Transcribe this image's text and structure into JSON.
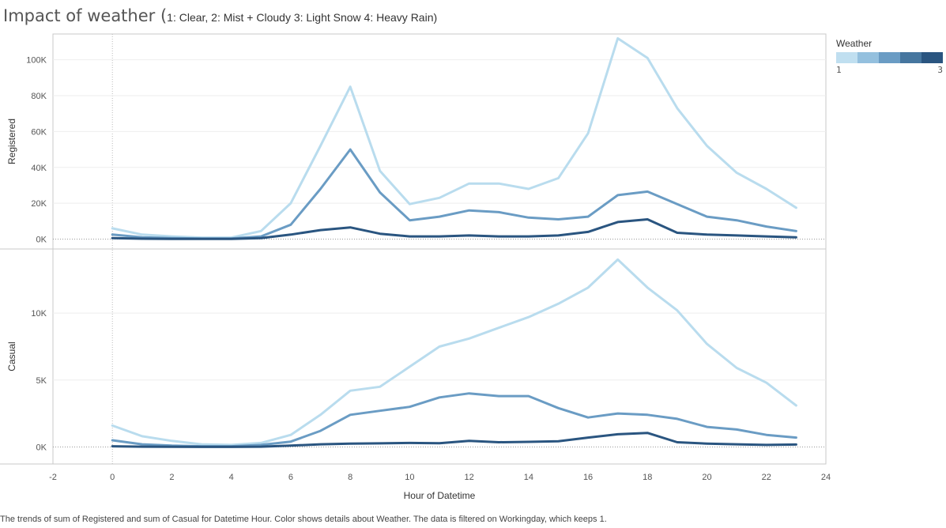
{
  "title": {
    "main": "Impact of weather (",
    "sub": "1: Clear, 2: Mist + Cloudy 3: Light Snow 4: Heavy Rain)"
  },
  "legend": {
    "title": "Weather",
    "min_label": "1",
    "max_label": "3",
    "colors": [
      "#c0dff0",
      "#94c0de",
      "#6a9cc4",
      "#46769f",
      "#2a5580"
    ]
  },
  "caption": "The trends of sum of Registered and sum of Casual for Datetime Hour.  Color shows details about Weather. The data is filtered on Workingday, which keeps 1.",
  "chart_data": {
    "type": "line",
    "xlabel": "Hour of Datetime",
    "x_ticks": [
      -2,
      0,
      2,
      4,
      6,
      8,
      10,
      12,
      14,
      16,
      18,
      20,
      22,
      24
    ],
    "xlim": [
      -2,
      24
    ],
    "x": [
      0,
      1,
      2,
      3,
      4,
      5,
      6,
      7,
      8,
      9,
      10,
      11,
      12,
      13,
      14,
      15,
      16,
      17,
      18,
      19,
      20,
      21,
      22,
      23
    ],
    "panels": [
      {
        "ylabel": "Registered",
        "ylim": [
          -2000,
          110000
        ],
        "y_ticks": [
          0,
          20000,
          40000,
          60000,
          80000,
          100000
        ],
        "y_tick_labels": [
          "0K",
          "20K",
          "40K",
          "60K",
          "80K",
          "100K"
        ],
        "series": [
          {
            "weather": "1",
            "color": "#b9dcee",
            "values": [
              6000,
              2500,
              1500,
              800,
              800,
              4500,
              20000,
              52000,
              85000,
              38000,
              19500,
              23000,
              31000,
              31000,
              28000,
              34000,
              59000,
              112000,
              101000,
              73000,
              52000,
              37000,
              28000,
              17500
            ]
          },
          {
            "weather": "2",
            "color": "#6a9cc4",
            "values": [
              2500,
              1000,
              500,
              300,
              300,
              1500,
              8000,
              28000,
              50000,
              26000,
              10500,
              12500,
              16000,
              15000,
              12000,
              11000,
              12500,
              24500,
              26500,
              19500,
              12500,
              10500,
              7000,
              4500
            ]
          },
          {
            "weather": "3",
            "color": "#2a5580",
            "values": [
              500,
              200,
              100,
              100,
              100,
              500,
              2500,
              5000,
              6500,
              3000,
              1500,
              1500,
              2000,
              1500,
              1500,
              2000,
              4000,
              9500,
              11000,
              3500,
              2500,
              2000,
              1500,
              1000
            ]
          }
        ]
      },
      {
        "ylabel": "Casual",
        "ylim": [
          -800,
          14200
        ],
        "y_ticks": [
          0,
          5000,
          10000
        ],
        "y_tick_labels": [
          "0K",
          "5K",
          "10K"
        ],
        "series": [
          {
            "weather": "1",
            "color": "#b9dcee",
            "values": [
              1600,
              800,
              450,
              200,
              150,
              300,
              900,
              2400,
              4200,
              4500,
              6000,
              7500,
              8100,
              8900,
              9700,
              10700,
              11900,
              14000,
              11900,
              10200,
              7700,
              5900,
              4800,
              3100
            ]
          },
          {
            "weather": "2",
            "color": "#6a9cc4",
            "values": [
              500,
              200,
              100,
              50,
              50,
              150,
              400,
              1200,
              2400,
              2700,
              3000,
              3700,
              4000,
              3800,
              3800,
              2900,
              2200,
              2500,
              2400,
              2100,
              1500,
              1300,
              900,
              700
            ]
          },
          {
            "weather": "3",
            "color": "#2a5580",
            "values": [
              50,
              20,
              10,
              5,
              5,
              20,
              100,
              200,
              250,
              270,
              300,
              280,
              450,
              350,
              380,
              420,
              700,
              950,
              1050,
              350,
              250,
              200,
              150,
              180
            ]
          }
        ]
      }
    ]
  }
}
